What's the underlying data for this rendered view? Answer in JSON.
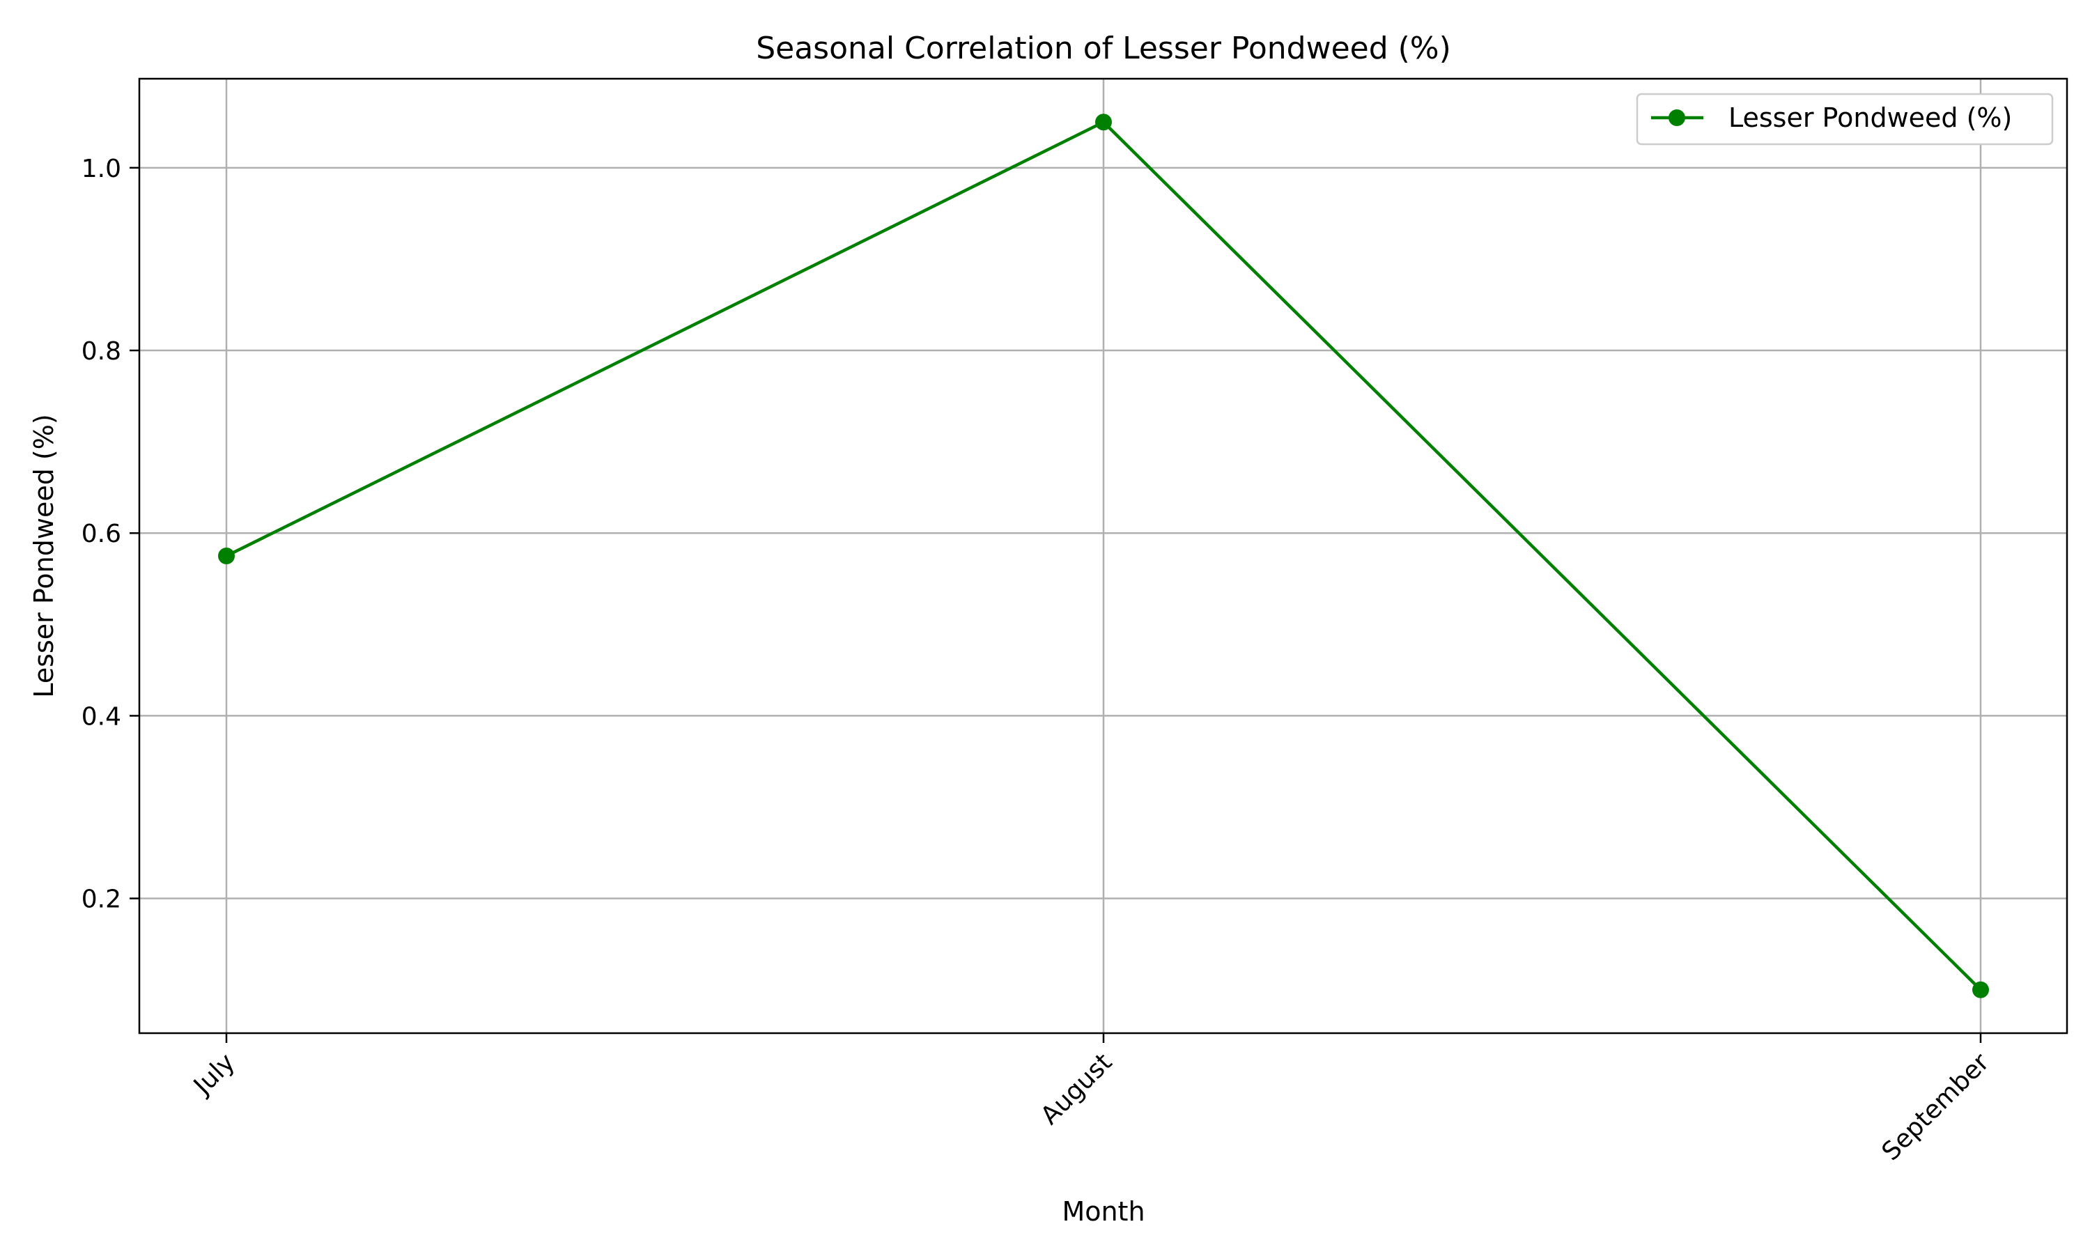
{
  "chart_data": {
    "type": "line",
    "title": "Seasonal Correlation of Lesser Pondweed (%)",
    "xlabel": "Month",
    "ylabel": "Lesser Pondweed (%)",
    "categories": [
      "July",
      "August",
      "September"
    ],
    "series": [
      {
        "name": "Lesser Pondweed (%)",
        "values": [
          0.575,
          1.05,
          0.1
        ],
        "color": "#008000",
        "marker": "circle"
      }
    ],
    "ylim": [
      0.0525,
      1.0975
    ],
    "yticks": [
      0.2,
      0.4,
      0.6,
      0.8,
      1.0
    ],
    "ytick_labels": [
      "0.2",
      "0.4",
      "0.6",
      "0.8",
      "1.0"
    ],
    "x_tick_rotation": 45,
    "grid": true,
    "legend": "top-right"
  }
}
